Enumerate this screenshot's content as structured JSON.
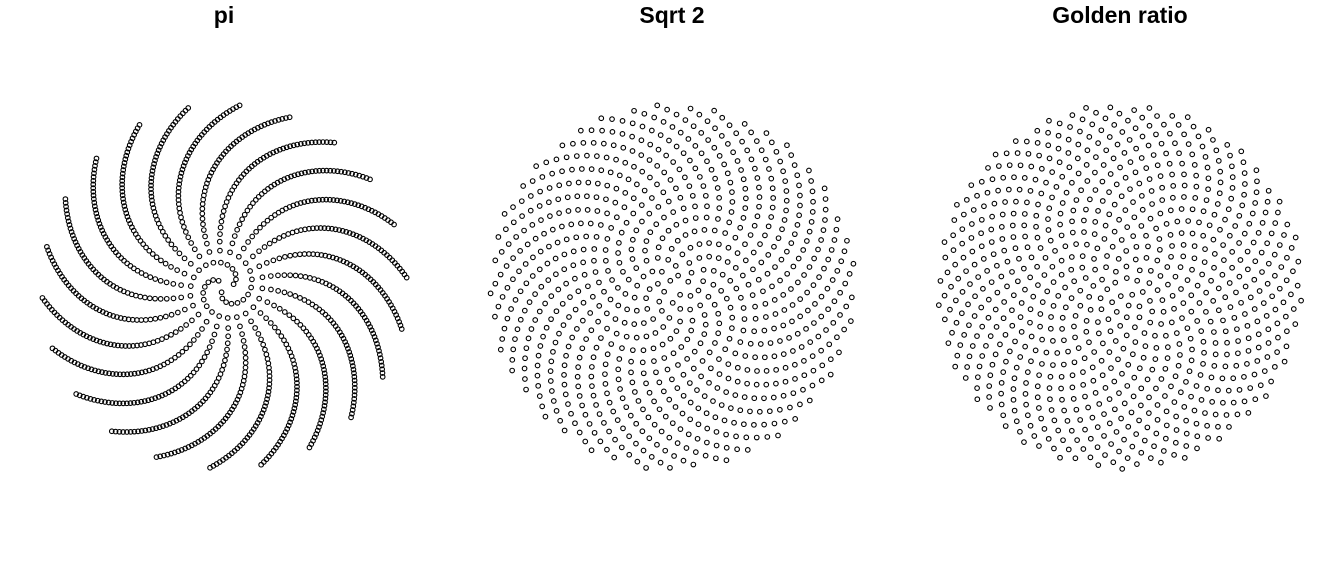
{
  "chart_data": [
    {
      "type": "scatter",
      "title": "pi",
      "generator": "sunflower spiral: point k at angle 2*pi*k/divergence, radius sqrt(k)",
      "divergence": 3.14159,
      "n_points": 1000,
      "axes_visible": false,
      "grid": false,
      "legend": "none",
      "marker": "open-circle",
      "color": "#000000"
    },
    {
      "type": "scatter",
      "title": "Sqrt 2",
      "generator": "sunflower spiral: point k at angle 2*pi*k/divergence, radius sqrt(k)",
      "divergence": 1.41421,
      "n_points": 800,
      "axes_visible": false,
      "grid": false,
      "legend": "none",
      "marker": "open-circle",
      "color": "#000000"
    },
    {
      "type": "scatter",
      "title": "Golden ratio",
      "generator": "sunflower spiral: point k at angle 2*pi*k/divergence, radius sqrt(k)",
      "divergence": 1.61803,
      "n_points": 800,
      "axes_visible": false,
      "grid": false,
      "legend": "none",
      "marker": "open-circle",
      "color": "#000000"
    }
  ]
}
